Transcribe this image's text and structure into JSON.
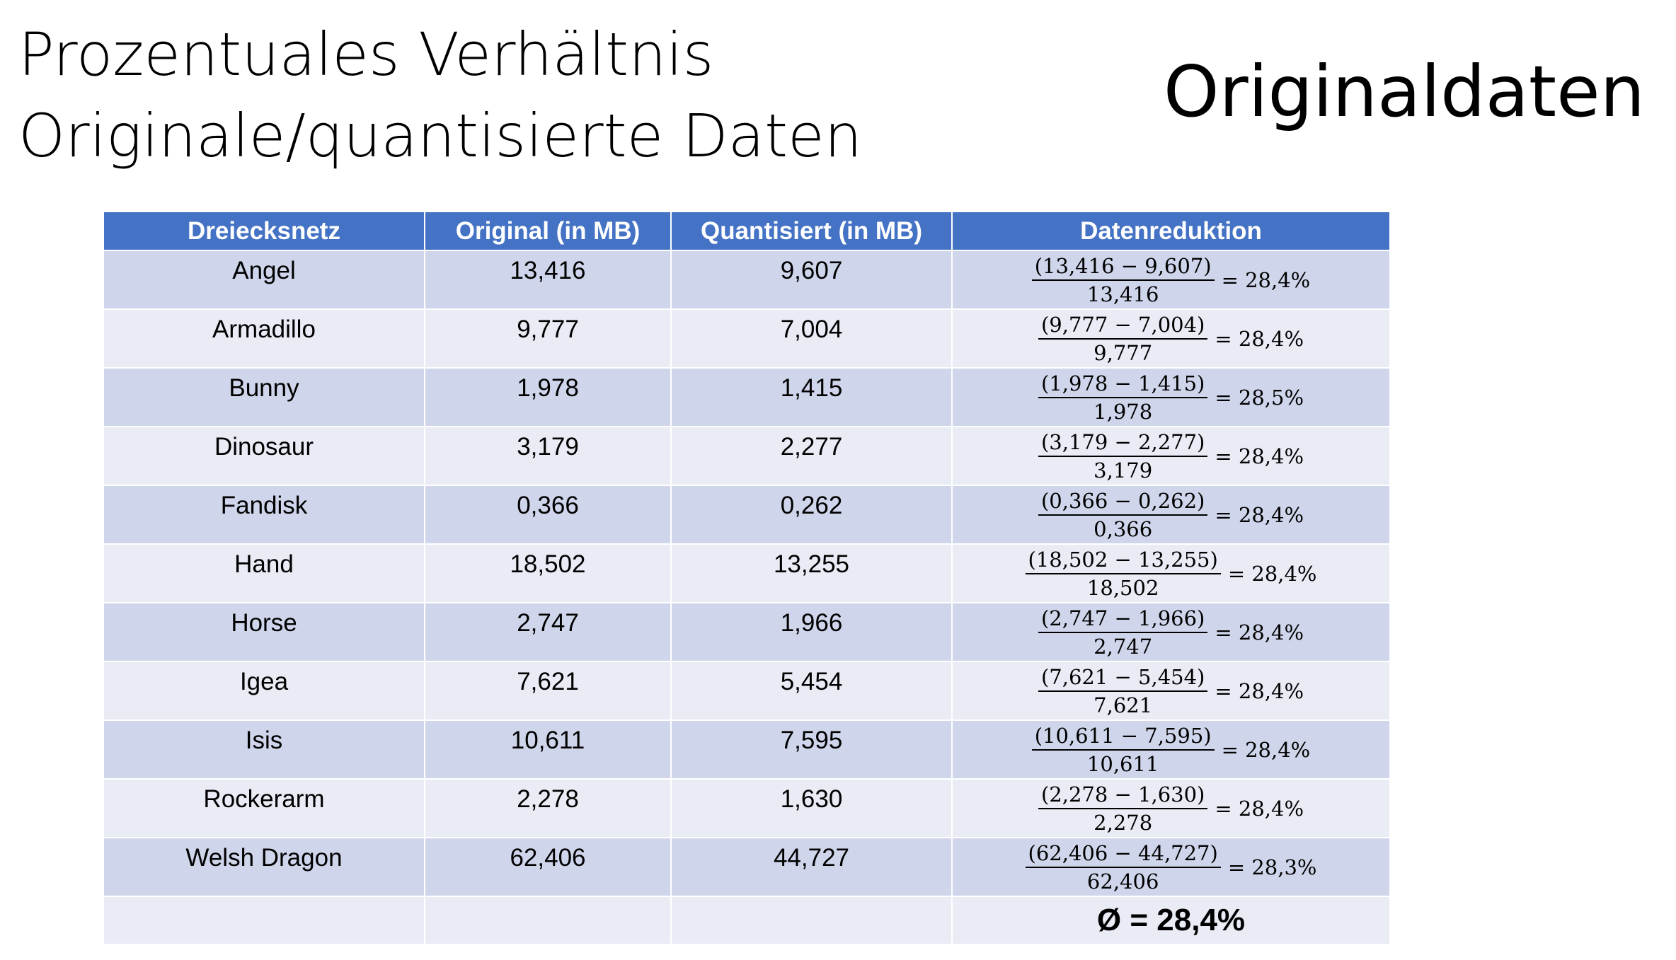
{
  "title": {
    "line1": "Prozentuales Verhältnis",
    "line2": "Originale/quantisierte Daten"
  },
  "badge": "Originaldaten",
  "table": {
    "headers": [
      "Dreiecksnetz",
      "Original (in MB)",
      "Quantisiert (in MB)",
      "Datenreduktion"
    ],
    "rows": [
      {
        "name": "Angel",
        "original": "13,416",
        "quantized": "9,607",
        "numerator": "(13,416  − 9,607)",
        "denominator": "13,416",
        "result": "= 28,4%"
      },
      {
        "name": "Armadillo",
        "original": "9,777",
        "quantized": "7,004",
        "numerator": "(9,777 − 7,004)",
        "denominator": "9,777",
        "result": "= 28,4%"
      },
      {
        "name": "Bunny",
        "original": "1,978",
        "quantized": "1,415",
        "numerator": "(1,978 − 1,415)",
        "denominator": "1,978",
        "result": "= 28,5%"
      },
      {
        "name": "Dinosaur",
        "original": "3,179",
        "quantized": "2,277",
        "numerator": "(3,179 − 2,277)",
        "denominator": "3,179",
        "result": "= 28,4%"
      },
      {
        "name": "Fandisk",
        "original": "0,366",
        "quantized": "0,262",
        "numerator": "(0,366 − 0,262)",
        "denominator": "0,366",
        "result": "= 28,4%"
      },
      {
        "name": "Hand",
        "original": "18,502",
        "quantized": "13,255",
        "numerator": "(18,502 − 13,255)",
        "denominator": "18,502",
        "result": "= 28,4%"
      },
      {
        "name": "Horse",
        "original": "2,747",
        "quantized": "1,966",
        "numerator": "(2,747 − 1,966)",
        "denominator": "2,747",
        "result": "= 28,4%"
      },
      {
        "name": "Igea",
        "original": "7,621",
        "quantized": "5,454",
        "numerator": "(7,621 − 5,454)",
        "denominator": "7,621",
        "result": "= 28,4%"
      },
      {
        "name": "Isis",
        "original": "10,611",
        "quantized": "7,595",
        "numerator": "(10,611 − 7,595)",
        "denominator": "10,611",
        "result": "= 28,4%"
      },
      {
        "name": "Rockerarm",
        "original": "2,278",
        "quantized": "1,630",
        "numerator": "(2,278 − 1,630)",
        "denominator": "2,278",
        "result": "= 28,4%"
      },
      {
        "name": "Welsh Dragon",
        "original": "62,406",
        "quantized": "44,727",
        "numerator": "(62,406 − 44,727)",
        "denominator": "62,406",
        "result": "= 28,3%"
      }
    ],
    "average": "Ø = 28,4%"
  },
  "colors": {
    "header_bg": "#4472c4",
    "row_odd": "#cfd5ea",
    "row_even": "#e9ebf5"
  }
}
